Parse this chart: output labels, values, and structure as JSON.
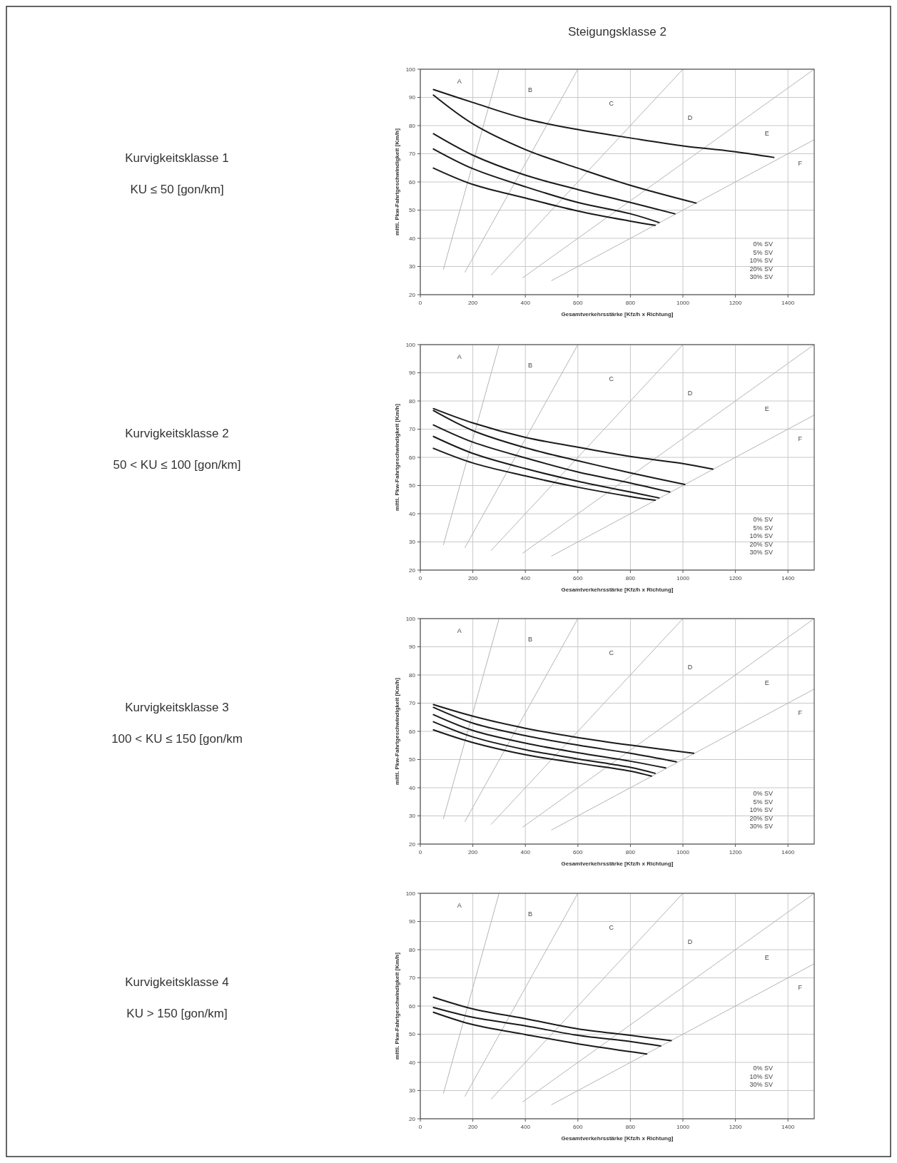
{
  "chart_data": [
    {
      "type": "line",
      "xlabel": "Gesamtverkehrsstärke [Kfz/h x Richtung]",
      "ylabel": "mittl. Pkw-Fahrtgeschwindigkeit [Km/h]",
      "xlim": [
        0,
        1500
      ],
      "ylim": [
        20,
        100
      ],
      "xticks": [
        0,
        200,
        400,
        600,
        800,
        1000,
        1200,
        1400
      ],
      "yticks": [
        20,
        30,
        40,
        50,
        60,
        70,
        80,
        90,
        100
      ],
      "grid": true,
      "annotations": [
        "Kurvigkeitsklasse 1",
        "KU ≤ 50 [gon/km]",
        "Steigungsklasse 2",
        "A",
        "B",
        "C",
        "D",
        "E",
        "F",
        "0% SV",
        "5% SV",
        "10% SV",
        "20% SV",
        "30% SV"
      ],
      "series": [
        {
          "color": "#b4b4b4",
          "x": [
            88,
            300
          ],
          "values": [
            29,
            100
          ]
        },
        {
          "color": "#b4b4b4",
          "x": [
            170,
            600
          ],
          "values": [
            28,
            100
          ]
        },
        {
          "color": "#b4b4b4",
          "x": [
            270,
            1000
          ],
          "values": [
            27,
            100
          ]
        },
        {
          "color": "#b4b4b4",
          "x": [
            390,
            1500
          ],
          "values": [
            26,
            100
          ]
        },
        {
          "color": "#b4b4b4",
          "x": [
            500,
            1500
          ],
          "values": [
            25,
            75
          ]
        },
        {
          "color": "#1a1a1a",
          "x": [
            50,
            200,
            400,
            600,
            800,
            1000,
            1200,
            1346
          ],
          "values": [
            92.8,
            88.2,
            82.4,
            78.6,
            75.6,
            72.8,
            70.7,
            68.7
          ]
        },
        {
          "color": "#1a1a1a",
          "x": [
            50,
            200,
            400,
            600,
            800,
            1050
          ],
          "values": [
            90.8,
            80.6,
            71.5,
            64.9,
            58.8,
            52.5
          ]
        },
        {
          "color": "#1a1a1a",
          "x": [
            50,
            200,
            400,
            600,
            800,
            969
          ],
          "values": [
            77.1,
            69.5,
            62.4,
            57.3,
            52.7,
            48.7
          ]
        },
        {
          "color": "#1a1a1a",
          "x": [
            50,
            200,
            400,
            600,
            800,
            909
          ],
          "values": [
            71.7,
            64.7,
            58.3,
            52.7,
            48.7,
            45.6
          ]
        },
        {
          "color": "#1a1a1a",
          "x": [
            50,
            200,
            400,
            600,
            800,
            894
          ],
          "values": [
            64.9,
            59.1,
            54.3,
            49.7,
            46.1,
            44.6
          ]
        }
      ]
    },
    {
      "type": "line",
      "xlabel": "Gesamtverkehrsstärke [Kfz/h x Richtung]",
      "ylabel": "mittl. Pkw-Fahrtgeschwindigkeit [Km/h]",
      "xlim": [
        0,
        1500
      ],
      "ylim": [
        20,
        100
      ],
      "xticks": [
        0,
        200,
        400,
        600,
        800,
        1000,
        1200,
        1400
      ],
      "yticks": [
        20,
        30,
        40,
        50,
        60,
        70,
        80,
        90,
        100
      ],
      "grid": true,
      "annotations": [
        "Kurvigkeitsklasse 2",
        "50 < KU ≤ 100 [gon/km]",
        "A",
        "B",
        "C",
        "D",
        "E",
        "F",
        "0% SV",
        "5% SV",
        "10% SV",
        "20% SV",
        "30% SV"
      ],
      "series": [
        {
          "color": "#b4b4b4",
          "x": [
            88,
            300
          ],
          "values": [
            29,
            100
          ]
        },
        {
          "color": "#b4b4b4",
          "x": [
            170,
            600
          ],
          "values": [
            28,
            100
          ]
        },
        {
          "color": "#b4b4b4",
          "x": [
            270,
            1000
          ],
          "values": [
            27,
            100
          ]
        },
        {
          "color": "#b4b4b4",
          "x": [
            390,
            1500
          ],
          "values": [
            26,
            100
          ]
        },
        {
          "color": "#b4b4b4",
          "x": [
            500,
            1500
          ],
          "values": [
            25,
            75
          ]
        },
        {
          "color": "#1a1a1a",
          "x": [
            50,
            200,
            400,
            600,
            800,
            1000,
            1114
          ],
          "values": [
            77.3,
            72.2,
            67.1,
            63.6,
            60.3,
            57.8,
            55.8
          ]
        },
        {
          "color": "#1a1a1a",
          "x": [
            50,
            200,
            400,
            600,
            800,
            1007
          ],
          "values": [
            76.6,
            69.5,
            63.4,
            58.8,
            54.5,
            50.4
          ]
        },
        {
          "color": "#1a1a1a",
          "x": [
            50,
            200,
            400,
            600,
            800,
            950
          ],
          "values": [
            71.5,
            65.4,
            59.8,
            54.8,
            50.9,
            47.7
          ]
        },
        {
          "color": "#1a1a1a",
          "x": [
            50,
            200,
            400,
            600,
            800,
            909
          ],
          "values": [
            67.4,
            61.4,
            56,
            51.5,
            47.7,
            45.6
          ]
        },
        {
          "color": "#1a1a1a",
          "x": [
            50,
            200,
            400,
            600,
            800,
            894
          ],
          "values": [
            63.2,
            58,
            53.4,
            49.4,
            46.1,
            44.8
          ]
        }
      ]
    },
    {
      "type": "line",
      "xlabel": "Gesamtverkehrsstärke [Kfz/h x Richtung]",
      "ylabel": "mittl. Pkw-Fahrtgeschwindigkeit [Km/h]",
      "xlim": [
        0,
        1500
      ],
      "ylim": [
        20,
        100
      ],
      "xticks": [
        0,
        200,
        400,
        600,
        800,
        1000,
        1200,
        1400
      ],
      "yticks": [
        20,
        30,
        40,
        50,
        60,
        70,
        80,
        90,
        100
      ],
      "grid": true,
      "annotations": [
        "Kurvigkeitsklasse 3",
        "100 < KU ≤ 150 [gon/km",
        "A",
        "B",
        "C",
        "D",
        "E",
        "F",
        "0% SV",
        "5% SV",
        "10% SV",
        "20% SV",
        "30% SV"
      ],
      "series": [
        {
          "color": "#b4b4b4",
          "x": [
            88,
            300
          ],
          "values": [
            29,
            100
          ]
        },
        {
          "color": "#b4b4b4",
          "x": [
            170,
            600
          ],
          "values": [
            28,
            100
          ]
        },
        {
          "color": "#b4b4b4",
          "x": [
            270,
            1000
          ],
          "values": [
            27,
            100
          ]
        },
        {
          "color": "#b4b4b4",
          "x": [
            390,
            1500
          ],
          "values": [
            26,
            100
          ]
        },
        {
          "color": "#b4b4b4",
          "x": [
            500,
            1500
          ],
          "values": [
            25,
            75
          ]
        },
        {
          "color": "#1a1a1a",
          "x": [
            50,
            200,
            400,
            600,
            800,
            1041
          ],
          "values": [
            69.5,
            65.4,
            61.1,
            57.8,
            55.1,
            52.2
          ]
        },
        {
          "color": "#1a1a1a",
          "x": [
            50,
            200,
            400,
            600,
            800,
            975
          ],
          "values": [
            68.5,
            62.9,
            58.5,
            55.1,
            52.2,
            49.2
          ]
        },
        {
          "color": "#1a1a1a",
          "x": [
            50,
            200,
            400,
            600,
            800,
            934
          ],
          "values": [
            65.9,
            60.3,
            55.8,
            52.4,
            49.4,
            47
          ]
        },
        {
          "color": "#1a1a1a",
          "x": [
            50,
            200,
            400,
            600,
            800,
            894
          ],
          "values": [
            63.4,
            58,
            53.5,
            50.2,
            47.2,
            45.1
          ]
        },
        {
          "color": "#1a1a1a",
          "x": [
            50,
            200,
            400,
            600,
            800,
            880
          ],
          "values": [
            60.5,
            56,
            51.7,
            48.7,
            45.9,
            44.1
          ]
        }
      ]
    },
    {
      "type": "line",
      "xlabel": "Gesamtverkehrsstärke [Kfz/h x Richtung]",
      "ylabel": "mittl. Pkw-Fahrtgeschwindigkeit [Km/h]",
      "xlim": [
        0,
        1500
      ],
      "ylim": [
        20,
        100
      ],
      "xticks": [
        0,
        200,
        400,
        600,
        800,
        1000,
        1200,
        1400
      ],
      "yticks": [
        20,
        30,
        40,
        50,
        60,
        70,
        80,
        90,
        100
      ],
      "grid": true,
      "annotations": [
        "Kurvigkeitsklasse 4",
        "KU > 150 [gon/km]",
        "A",
        "B",
        "C",
        "D",
        "E",
        "F",
        "0% SV",
        "10% SV",
        "30% SV"
      ],
      "series": [
        {
          "color": "#b4b4b4",
          "x": [
            88,
            300
          ],
          "values": [
            29,
            100
          ]
        },
        {
          "color": "#b4b4b4",
          "x": [
            170,
            600
          ],
          "values": [
            28,
            100
          ]
        },
        {
          "color": "#b4b4b4",
          "x": [
            270,
            1000
          ],
          "values": [
            27,
            100
          ]
        },
        {
          "color": "#b4b4b4",
          "x": [
            390,
            1500
          ],
          "values": [
            26,
            100
          ]
        },
        {
          "color": "#b4b4b4",
          "x": [
            500,
            1500
          ],
          "values": [
            25,
            75
          ]
        },
        {
          "color": "#1a1a1a",
          "x": [
            50,
            200,
            400,
            600,
            800,
            955
          ],
          "values": [
            63.1,
            59,
            55.5,
            51.9,
            49.6,
            47.7
          ]
        },
        {
          "color": "#1a1a1a",
          "x": [
            50,
            200,
            400,
            600,
            800,
            915
          ],
          "values": [
            59.5,
            56,
            53,
            49.6,
            47.4,
            45.8
          ]
        },
        {
          "color": "#1a1a1a",
          "x": [
            50,
            200,
            400,
            600,
            800,
            862
          ],
          "values": [
            57.8,
            53.4,
            49.9,
            46.6,
            43.8,
            43
          ]
        }
      ]
    }
  ]
}
